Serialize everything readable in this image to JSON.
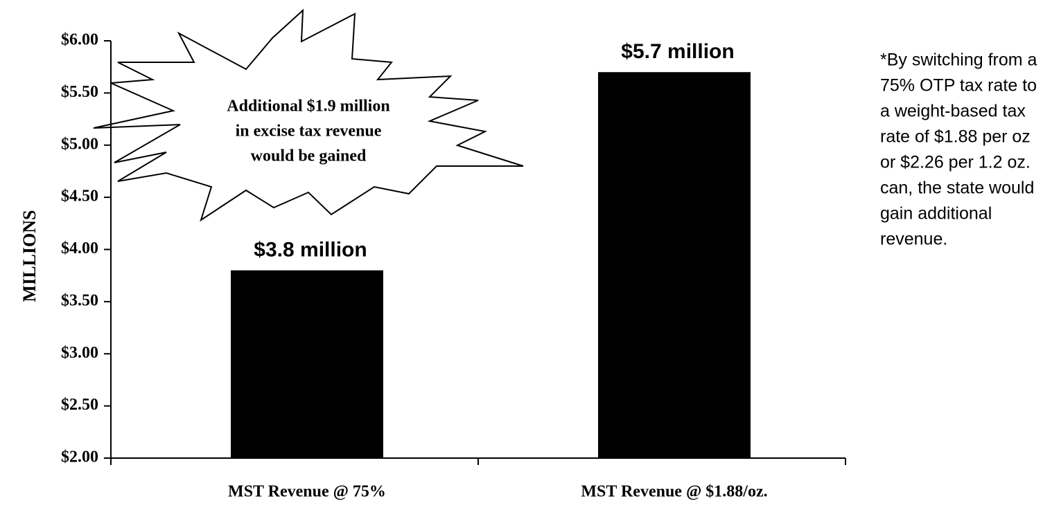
{
  "chart_data": {
    "type": "bar",
    "y_label": "MILLIONS",
    "categories": [
      "MST Revenue @ 75%",
      "MST Revenue @ $1.88/oz."
    ],
    "values": [
      3.8,
      5.7
    ],
    "value_labels": [
      "$3.8 million",
      "$5.7 million"
    ],
    "color": "#000000",
    "ylim": [
      2,
      6
    ],
    "yticks": [
      {
        "value": 2,
        "label": "$2.00"
      },
      {
        "value": 2.5,
        "label": "$2.50"
      },
      {
        "value": 3,
        "label": "$3.00"
      },
      {
        "value": 3.5,
        "label": "$3.50"
      },
      {
        "value": 4,
        "label": "$4.00"
      },
      {
        "value": 4.5,
        "label": "$4.50"
      },
      {
        "value": 5,
        "label": "$5.00"
      },
      {
        "value": 5.5,
        "label": "$5.50"
      },
      {
        "value": 6,
        "label": "$6.00"
      }
    ],
    "grid": false,
    "annotation": [
      "Additional $1.9 million",
      "in excise tax revenue",
      "would be gained"
    ],
    "note": [
      "*By switching from a",
      "75% OTP tax rate to",
      "a weight-based tax",
      "rate of $1.88 per oz",
      "or $2.26 per 1.2 oz.",
      "can, the state would",
      "gain additional",
      "revenue."
    ]
  }
}
